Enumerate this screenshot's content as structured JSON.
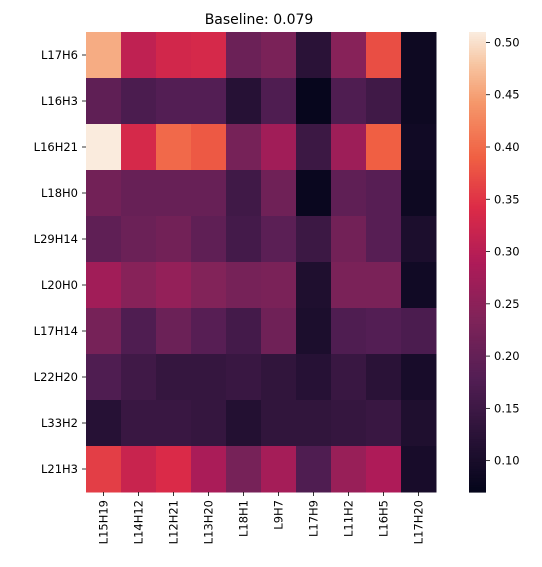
{
  "chart_data": {
    "type": "heatmap",
    "title": "Baseline: 0.079",
    "xlabel": "",
    "ylabel": "",
    "x_categories": [
      "L15H19",
      "L14H12",
      "L12H21",
      "L13H20",
      "L18H1",
      "L9H7",
      "L17H9",
      "L11H2",
      "L16H5",
      "L17H20"
    ],
    "y_categories": [
      "L17H6",
      "L16H3",
      "L16H21",
      "L18H0",
      "L29H14",
      "L20H0",
      "L17H14",
      "L22H20",
      "L33H2",
      "L21H3"
    ],
    "values": [
      [
        0.46,
        0.31,
        0.33,
        0.335,
        0.21,
        0.23,
        0.125,
        0.245,
        0.375,
        0.085
      ],
      [
        0.195,
        0.17,
        0.18,
        0.18,
        0.12,
        0.175,
        0.075,
        0.175,
        0.155,
        0.085
      ],
      [
        0.51,
        0.335,
        0.4,
        0.385,
        0.225,
        0.275,
        0.15,
        0.27,
        0.39,
        0.09
      ],
      [
        0.22,
        0.205,
        0.205,
        0.205,
        0.155,
        0.215,
        0.08,
        0.195,
        0.185,
        0.085
      ],
      [
        0.195,
        0.21,
        0.22,
        0.195,
        0.16,
        0.19,
        0.15,
        0.22,
        0.185,
        0.105
      ],
      [
        0.275,
        0.245,
        0.26,
        0.24,
        0.225,
        0.23,
        0.11,
        0.23,
        0.23,
        0.09
      ],
      [
        0.225,
        0.175,
        0.21,
        0.185,
        0.16,
        0.215,
        0.105,
        0.175,
        0.18,
        0.17
      ],
      [
        0.175,
        0.155,
        0.14,
        0.14,
        0.145,
        0.135,
        0.12,
        0.145,
        0.125,
        0.1
      ],
      [
        0.12,
        0.145,
        0.145,
        0.14,
        0.115,
        0.135,
        0.135,
        0.14,
        0.145,
        0.11
      ],
      [
        0.36,
        0.32,
        0.34,
        0.285,
        0.225,
        0.28,
        0.175,
        0.265,
        0.29,
        0.1
      ]
    ],
    "colorbar": {
      "range": [
        0.07,
        0.51
      ],
      "ticks": [
        "0.10",
        "0.15",
        "0.20",
        "0.25",
        "0.30",
        "0.35",
        "0.40",
        "0.45",
        "0.50"
      ],
      "colormap": "rocket"
    }
  }
}
